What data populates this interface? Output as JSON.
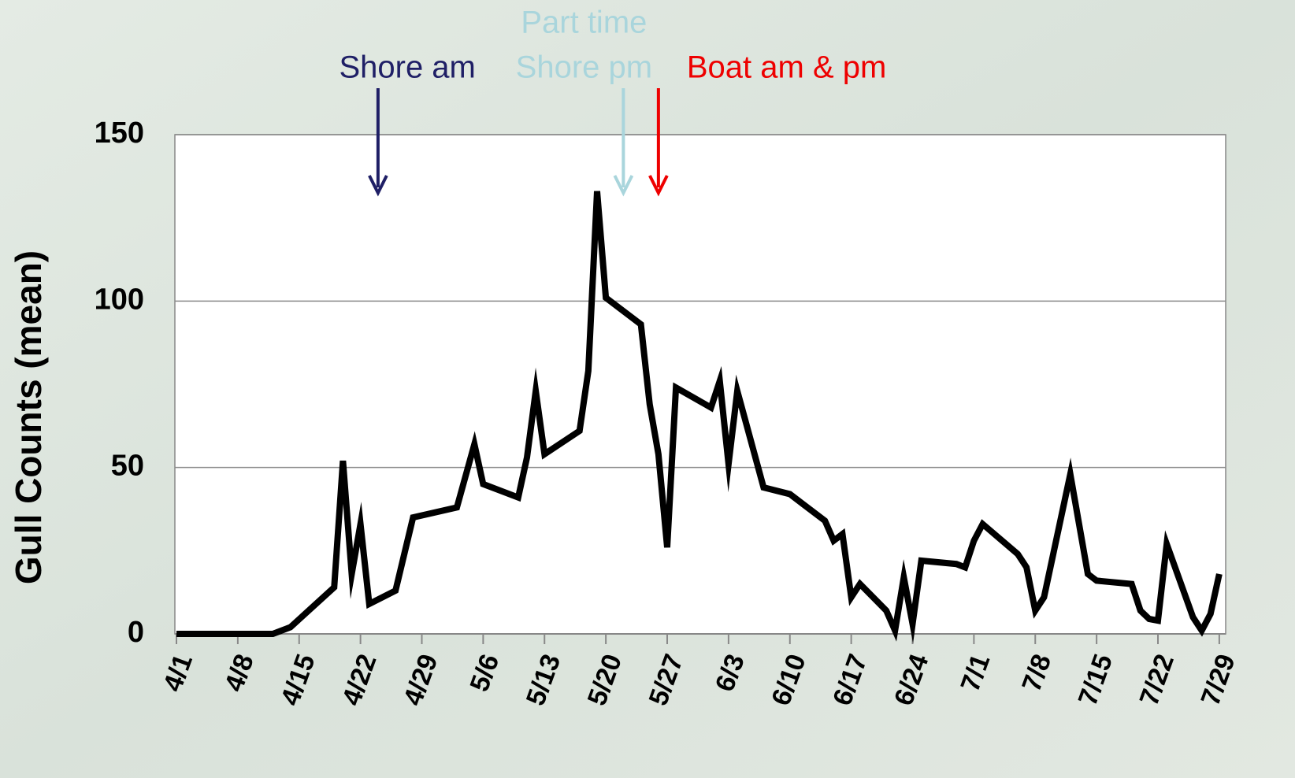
{
  "chart_data": {
    "type": "line",
    "y_label": "Gull Counts (mean)",
    "x": [
      "4/1",
      "4/12",
      "4/14",
      "4/19",
      "4/20",
      "4/21",
      "4/22",
      "4/23",
      "4/26",
      "4/28",
      "5/3",
      "5/5",
      "5/6",
      "5/10",
      "5/11",
      "5/12",
      "5/13",
      "5/17",
      "5/18",
      "5/19",
      "5/20",
      "5/24",
      "5/25",
      "5/26",
      "5/27",
      "5/28",
      "6/1",
      "6/2",
      "6/3",
      "6/4",
      "6/7",
      "6/10",
      "6/14",
      "6/15",
      "6/16",
      "6/17",
      "6/18",
      "6/21",
      "6/22",
      "6/23",
      "6/24",
      "6/25",
      "6/29",
      "6/30",
      "7/1",
      "7/2",
      "7/6",
      "7/7",
      "7/8",
      "7/9",
      "7/12",
      "7/14",
      "7/15",
      "7/19",
      "7/20",
      "7/21",
      "7/22",
      "7/23",
      "7/26",
      "7/27",
      "7/28",
      "7/29"
    ],
    "series": [
      {
        "color": "#000000",
        "values": [
          0,
          0,
          2,
          14,
          52,
          18,
          33,
          9,
          13,
          35,
          38,
          57,
          45,
          41,
          53,
          73,
          54,
          61,
          79,
          133,
          101,
          93,
          69,
          54,
          26,
          74,
          68,
          76,
          51,
          73,
          44,
          42,
          34,
          28,
          30,
          11,
          15,
          7,
          1,
          17,
          3,
          22,
          21,
          20,
          28,
          33,
          24,
          20,
          7,
          11,
          48,
          18,
          16,
          15,
          7,
          4.5,
          4,
          27,
          5,
          1,
          6,
          18
        ]
      }
    ],
    "xlim": [
      "4/1",
      "7/30"
    ],
    "xticks": [
      "4/1",
      "4/8",
      "4/15",
      "4/22",
      "4/29",
      "5/6",
      "5/13",
      "5/20",
      "5/27",
      "6/3",
      "6/10",
      "6/17",
      "6/24",
      "7/1",
      "7/8",
      "7/15",
      "7/22",
      "7/29"
    ],
    "ylim": [
      0,
      150
    ],
    "yticks": [
      0,
      50,
      100,
      150
    ],
    "grid": true,
    "annotations": [
      {
        "lines": [
          "Shore am"
        ],
        "x": "4/24",
        "color": "#1f1f66"
      },
      {
        "lines": [
          "Part time",
          "Shore pm"
        ],
        "x": "5/22",
        "color": "#a9d5dc"
      },
      {
        "lines": [
          "Boat am & pm"
        ],
        "x": "5/26",
        "color": "#ee0000"
      }
    ]
  }
}
